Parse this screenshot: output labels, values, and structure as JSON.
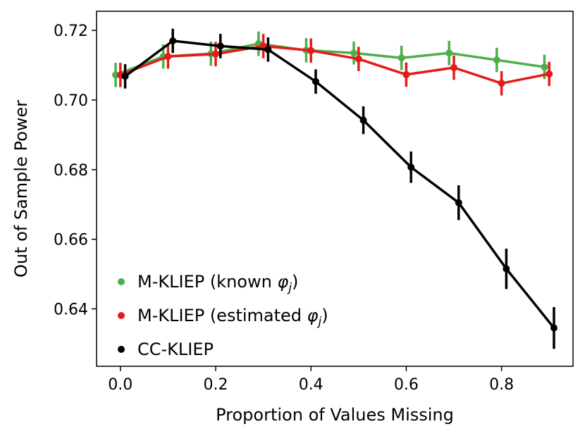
{
  "chart_data": {
    "type": "line",
    "xlabel": "Proportion of Values Missing",
    "ylabel": "Out of Sample Power",
    "xlim": [
      -0.05,
      0.95
    ],
    "ylim": [
      0.6235,
      0.7255
    ],
    "xticks": [
      0.0,
      0.2,
      0.4,
      0.6,
      0.8
    ],
    "xtick_labels": [
      "0.0",
      "0.2",
      "0.4",
      "0.6",
      "0.8"
    ],
    "yticks": [
      0.64,
      0.66,
      0.68,
      0.7,
      0.72
    ],
    "ytick_labels": [
      "0.64",
      "0.66",
      "0.68",
      "0.70",
      "0.72"
    ],
    "grid": false,
    "legend_position": "lower-left",
    "series": [
      {
        "name": "M-KLIEP (known φj)",
        "legend_main": "M-KLIEP (known ",
        "legend_sym": "φ",
        "legend_sub": "j",
        "legend_close": ")",
        "color": "#4daf4a",
        "x": [
          -0.01,
          0.09,
          0.19,
          0.29,
          0.39,
          0.49,
          0.59,
          0.69,
          0.79,
          0.89
        ],
        "y": [
          0.7072,
          0.7125,
          0.7133,
          0.7162,
          0.7143,
          0.7135,
          0.7121,
          0.7135,
          0.7115,
          0.7095
        ],
        "err": [
          0.0035,
          0.0035,
          0.0035,
          0.0035,
          0.0035,
          0.0033,
          0.0035,
          0.0035,
          0.0035,
          0.0035
        ]
      },
      {
        "name": "M-KLIEP (estimated φj)",
        "legend_main": "M-KLIEP (estimated ",
        "legend_sym": "φ",
        "legend_sub": "j",
        "legend_close": ")",
        "color": "#e41a1c",
        "x": [
          0.0,
          0.1,
          0.2,
          0.3,
          0.4,
          0.5,
          0.6,
          0.7,
          0.8,
          0.9
        ],
        "y": [
          0.7072,
          0.7125,
          0.7132,
          0.7155,
          0.7142,
          0.7118,
          0.7073,
          0.7093,
          0.7048,
          0.7075
        ],
        "err": [
          0.0035,
          0.0035,
          0.0035,
          0.0035,
          0.0035,
          0.0035,
          0.0035,
          0.0035,
          0.0035,
          0.0035
        ]
      },
      {
        "name": "CC-KLIEP",
        "legend_main": "CC-KLIEP",
        "legend_sym": "",
        "legend_sub": "",
        "legend_close": "",
        "color": "#000000",
        "x": [
          0.01,
          0.11,
          0.21,
          0.31,
          0.41,
          0.51,
          0.61,
          0.71,
          0.81,
          0.91
        ],
        "y": [
          0.7068,
          0.717,
          0.7155,
          0.7145,
          0.7053,
          0.6942,
          0.6807,
          0.6705,
          0.6515,
          0.6345
        ],
        "err": [
          0.0035,
          0.0035,
          0.0035,
          0.0035,
          0.0035,
          0.004,
          0.0045,
          0.005,
          0.0058,
          0.006
        ]
      }
    ]
  }
}
